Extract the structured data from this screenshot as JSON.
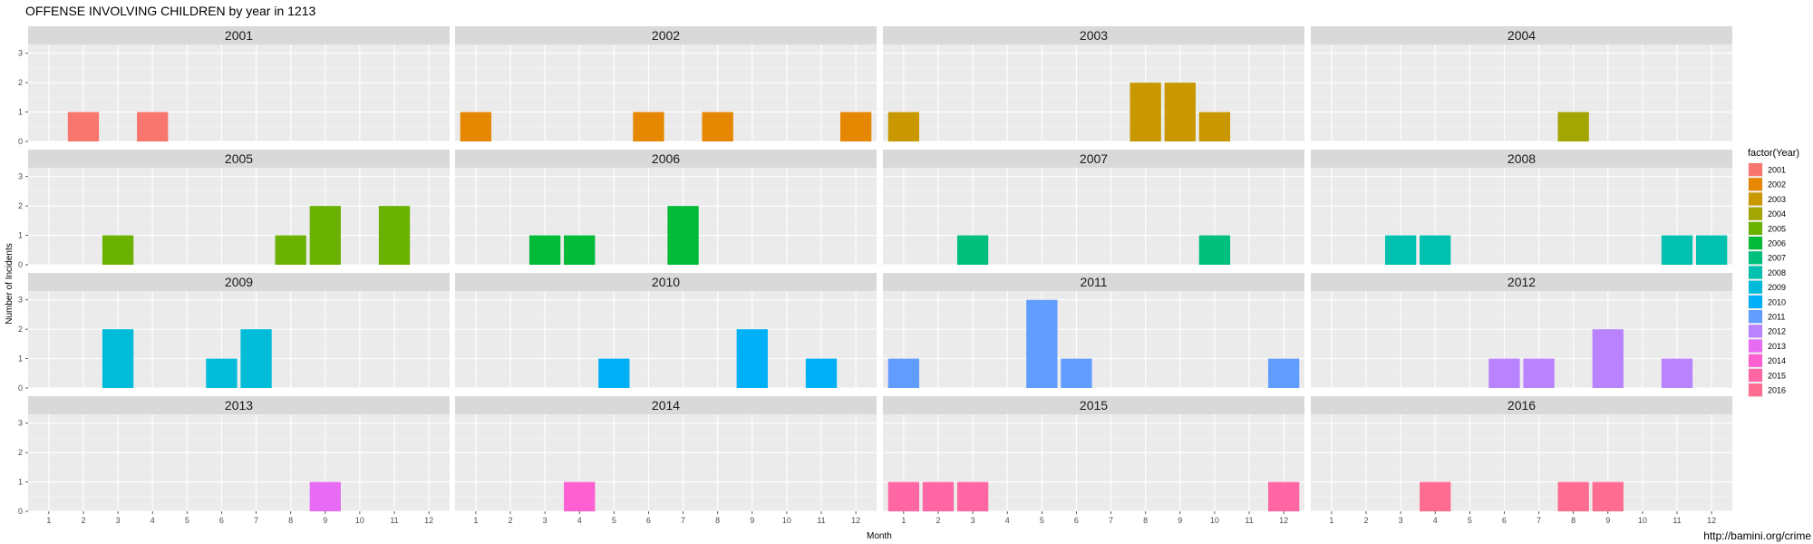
{
  "chart_data": {
    "type": "bar",
    "title": "OFFENSE INVOLVING CHILDREN by year in 1213",
    "xlabel": "Month",
    "ylabel": "Number of Incidents",
    "x_ticks": [
      1,
      2,
      3,
      4,
      5,
      6,
      7,
      8,
      9,
      10,
      11,
      12
    ],
    "y_ticks": [
      0,
      1,
      2,
      3
    ],
    "ylim": [
      0,
      3.3
    ],
    "grid": true,
    "legend": {
      "title": "factor(Year)",
      "placement": "right",
      "entries": [
        "2001",
        "2002",
        "2003",
        "2004",
        "2005",
        "2006",
        "2007",
        "2008",
        "2009",
        "2010",
        "2011",
        "2012",
        "2013",
        "2014",
        "2015",
        "2016"
      ]
    },
    "caption": "http://bamini.org/crime",
    "panels": [
      {
        "name": "2001",
        "color": "#F8766D",
        "bars": [
          {
            "month": 2,
            "value": 1
          },
          {
            "month": 4,
            "value": 1
          }
        ]
      },
      {
        "name": "2002",
        "color": "#E58700",
        "bars": [
          {
            "month": 1,
            "value": 1
          },
          {
            "month": 6,
            "value": 1
          },
          {
            "month": 8,
            "value": 1
          },
          {
            "month": 12,
            "value": 1
          }
        ]
      },
      {
        "name": "2003",
        "color": "#C99800",
        "bars": [
          {
            "month": 1,
            "value": 1
          },
          {
            "month": 8,
            "value": 2
          },
          {
            "month": 9,
            "value": 2
          },
          {
            "month": 10,
            "value": 1
          }
        ]
      },
      {
        "name": "2004",
        "color": "#A3A500",
        "bars": [
          {
            "month": 8,
            "value": 1
          }
        ]
      },
      {
        "name": "2005",
        "color": "#6BB100",
        "bars": [
          {
            "month": 3,
            "value": 1
          },
          {
            "month": 8,
            "value": 1
          },
          {
            "month": 9,
            "value": 2
          },
          {
            "month": 11,
            "value": 2
          }
        ]
      },
      {
        "name": "2006",
        "color": "#00BA38",
        "bars": [
          {
            "month": 3,
            "value": 1
          },
          {
            "month": 4,
            "value": 1
          },
          {
            "month": 7,
            "value": 2
          }
        ]
      },
      {
        "name": "2007",
        "color": "#00BF7D",
        "bars": [
          {
            "month": 3,
            "value": 1
          },
          {
            "month": 10,
            "value": 1
          }
        ]
      },
      {
        "name": "2008",
        "color": "#00C0AF",
        "bars": [
          {
            "month": 3,
            "value": 1
          },
          {
            "month": 4,
            "value": 1
          },
          {
            "month": 11,
            "value": 1
          },
          {
            "month": 12,
            "value": 1
          }
        ]
      },
      {
        "name": "2009",
        "color": "#00BCD8",
        "bars": [
          {
            "month": 3,
            "value": 2
          },
          {
            "month": 6,
            "value": 1
          },
          {
            "month": 7,
            "value": 2
          }
        ]
      },
      {
        "name": "2010",
        "color": "#00B0F6",
        "bars": [
          {
            "month": 5,
            "value": 1
          },
          {
            "month": 9,
            "value": 2
          },
          {
            "month": 11,
            "value": 1
          }
        ]
      },
      {
        "name": "2011",
        "color": "#619CFF",
        "bars": [
          {
            "month": 1,
            "value": 1
          },
          {
            "month": 5,
            "value": 3
          },
          {
            "month": 6,
            "value": 1
          },
          {
            "month": 12,
            "value": 1
          }
        ]
      },
      {
        "name": "2012",
        "color": "#B983FF",
        "bars": [
          {
            "month": 6,
            "value": 1
          },
          {
            "month": 7,
            "value": 1
          },
          {
            "month": 9,
            "value": 2
          },
          {
            "month": 11,
            "value": 1
          }
        ]
      },
      {
        "name": "2013",
        "color": "#E76BF3",
        "bars": [
          {
            "month": 9,
            "value": 1
          }
        ]
      },
      {
        "name": "2014",
        "color": "#FD61D1",
        "bars": [
          {
            "month": 4,
            "value": 1
          }
        ]
      },
      {
        "name": "2015",
        "color": "#FF67A4",
        "bars": [
          {
            "month": 1,
            "value": 1
          },
          {
            "month": 2,
            "value": 1
          },
          {
            "month": 3,
            "value": 1
          },
          {
            "month": 12,
            "value": 1
          }
        ]
      },
      {
        "name": "2016",
        "color": "#FF6C91",
        "bars": [
          {
            "month": 4,
            "value": 1
          },
          {
            "month": 8,
            "value": 1
          },
          {
            "month": 9,
            "value": 1
          }
        ]
      }
    ]
  }
}
